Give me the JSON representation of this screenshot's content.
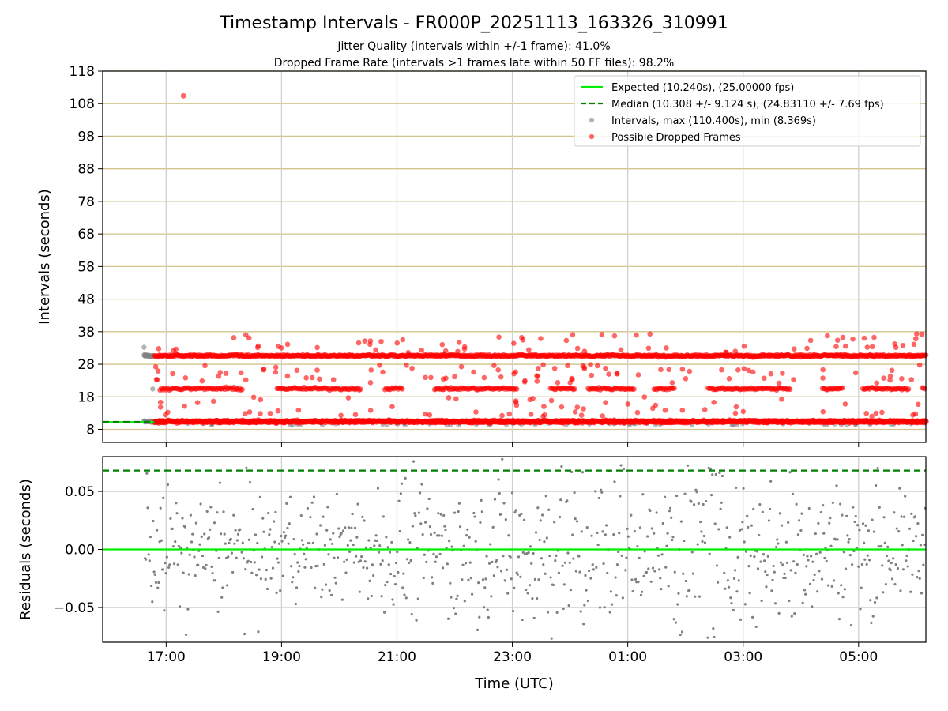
{
  "figure": {
    "title": "Timestamp Intervals - FR000P_20251113_163326_310991",
    "subtitle1": "Jitter Quality (intervals within +/-1 frame): 41.0%",
    "subtitle2": "Dropped Frame Rate (intervals >1 frames late within 50 FF files): 98.2%",
    "xlabel": "Time (UTC)"
  },
  "colors": {
    "expected": "#00ee00",
    "median": "#008000",
    "intervals": "#808080",
    "dropped": "#ff0000",
    "hgrid": "#d2c48a",
    "vgrid": "#d0d0d0"
  },
  "chart_data": [
    {
      "type": "scatter",
      "name": "intervals-panel",
      "ylabel": "Intervals (seconds)",
      "xlim": [
        "15:54",
        "06:10"
      ],
      "ylim": [
        4,
        118
      ],
      "yticks": [
        8,
        18,
        28,
        38,
        48,
        58,
        68,
        78,
        88,
        98,
        108,
        118
      ],
      "xticks": [
        "17:00",
        "19:00",
        "21:00",
        "23:00",
        "01:00",
        "03:00",
        "05:00"
      ],
      "grid": true,
      "legend_position": "top-right",
      "expected_interval": 10.24,
      "median_interval": 10.308,
      "legend": [
        {
          "key": "expected",
          "label": "Expected (10.240s), (25.00000 fps)"
        },
        {
          "key": "median",
          "label": "Median (10.308 +/- 9.124 s), (24.83110 +/- 7.69 fps)"
        },
        {
          "key": "intervals",
          "label": "Intervals, max (110.400s), min (8.369s)"
        },
        {
          "key": "dropped",
          "label": "Possible Dropped Frames"
        }
      ],
      "bands": [
        10.4,
        20.5,
        30.6
      ],
      "outliers": [
        {
          "x": "17:18",
          "y": 110.4
        }
      ]
    },
    {
      "type": "scatter",
      "name": "residuals-panel",
      "ylabel": "Residuals (seconds)",
      "xlim": [
        "15:54",
        "06:10"
      ],
      "ylim": [
        -0.08,
        0.08
      ],
      "yticks": [
        -0.05,
        0.0,
        0.05
      ],
      "ytick_labels": [
        "−0.05",
        "0.00",
        "0.05"
      ],
      "xticks": [
        "17:00",
        "19:00",
        "21:00",
        "23:00",
        "01:00",
        "03:00",
        "05:00"
      ],
      "grid": true,
      "expected_residual": 0.0,
      "median_residual": 0.068
    }
  ]
}
